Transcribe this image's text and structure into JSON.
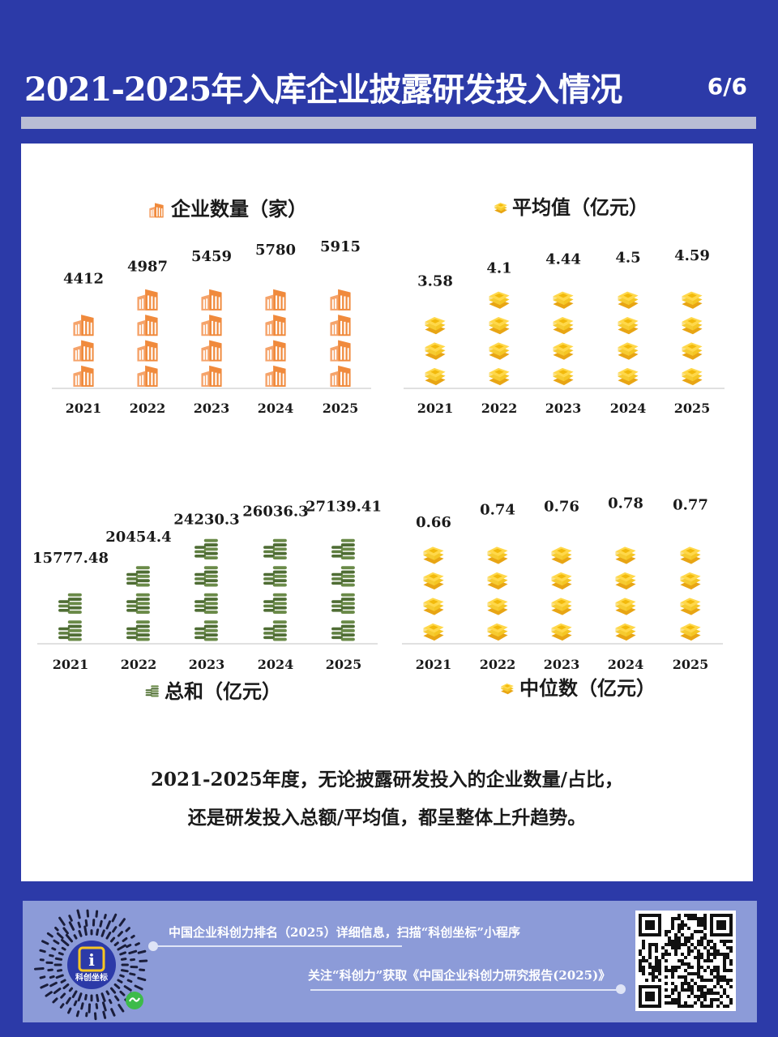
{
  "header": {
    "title": "2021-2025年入库企业披露研发投入情况",
    "page": "6/6"
  },
  "chart_data": [
    {
      "id": "count",
      "type": "bar",
      "title": "企业数量（家）",
      "categories": [
        "2021",
        "2022",
        "2023",
        "2024",
        "2025"
      ],
      "values": [
        4412,
        4987,
        5459,
        5780,
        5915
      ],
      "value_labels": [
        "4412",
        "4987",
        "5459",
        "5780",
        "5915"
      ],
      "ylim": [
        0,
        6000
      ],
      "icon": "building-icon",
      "color": "#f08a3c"
    },
    {
      "id": "average",
      "type": "bar",
      "title": "平均值（亿元）",
      "categories": [
        "2021",
        "2022",
        "2023",
        "2024",
        "2025"
      ],
      "values": [
        3.58,
        4.1,
        4.44,
        4.5,
        4.59
      ],
      "value_labels": [
        "3.58",
        "4.1",
        "4.44",
        "4.5",
        "4.59"
      ],
      "ylim": [
        0,
        5
      ],
      "icon": "cash-stack-icon",
      "color": "#f7c623"
    },
    {
      "id": "total",
      "type": "bar",
      "title": "总和（亿元）",
      "categories": [
        "2021",
        "2022",
        "2023",
        "2024",
        "2025"
      ],
      "values": [
        15777.48,
        20454.4,
        24230.3,
        26036.3,
        27139.41
      ],
      "value_labels": [
        "15777.48",
        "20454.4",
        "24230.3",
        "26036.3",
        "27139.41"
      ],
      "ylim": [
        0,
        30000
      ],
      "icon": "coin-stack-icon",
      "color": "#4f6d34"
    },
    {
      "id": "median",
      "type": "bar",
      "title": "中位数（亿元）",
      "categories": [
        "2021",
        "2022",
        "2023",
        "2024",
        "2025"
      ],
      "values": [
        0.66,
        0.74,
        0.76,
        0.78,
        0.77
      ],
      "value_labels": [
        "0.66",
        "0.74",
        "0.76",
        "0.78",
        "0.77"
      ],
      "ylim": [
        0,
        0.8
      ],
      "icon": "cash-stack-icon",
      "color": "#f7c623"
    }
  ],
  "summary": {
    "line1": "2021-2025年度，无论披露研发投入的企业数量/占比，",
    "line2": "还是研发投入总额/平均值，都呈整体上升趋势。"
  },
  "footer": {
    "line1": "中国企业科创力排名（2025）详细信息，扫描“科创坐标”小程序",
    "line2": "关注“科创力”获取《中国企业科创力研究报告(2025)》",
    "logo_text": "科创坐标"
  }
}
